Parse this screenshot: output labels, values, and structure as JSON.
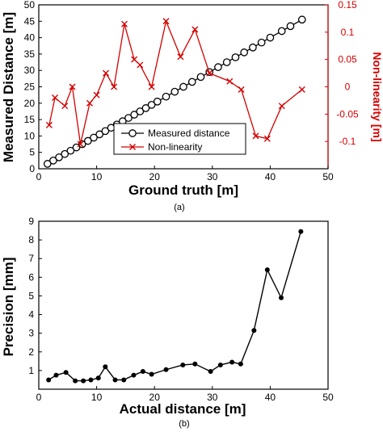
{
  "colors": {
    "measured": "#000000",
    "nonlinearity": "#d40000",
    "precision": "#000000"
  },
  "captions": {
    "a": "(a)",
    "b": "(b)"
  },
  "chart_data": [
    {
      "id": "a",
      "type": "line",
      "xlabel": "Ground truth [m]",
      "ylabel": "Measured Distance [m]",
      "y2label": "Non-linearity [m]",
      "xlim": [
        0,
        50
      ],
      "ylim": [
        0,
        50
      ],
      "y2lim": [
        -0.15,
        0.15
      ],
      "xticks": [
        0,
        10,
        20,
        30,
        40,
        50
      ],
      "yticks": [
        0,
        5,
        10,
        15,
        20,
        25,
        30,
        35,
        40,
        45,
        50
      ],
      "y2ticks": [
        -0.1,
        -0.05,
        0,
        0.05,
        0.1,
        0.15
      ],
      "y2ticklabels": [
        "-0.1",
        "-0.05",
        "0",
        "0.05",
        "0.1",
        "0.15"
      ],
      "grid": false,
      "legend_position": "lower-right",
      "series": [
        {
          "name": "Measured distance",
          "marker": "circle",
          "axis": "left",
          "x": [
            1.5,
            2.5,
            3.5,
            4.5,
            5.5,
            6.5,
            7.5,
            8.5,
            9.5,
            10.5,
            11.5,
            12.5,
            13.5,
            14.5,
            15.5,
            16.5,
            17.5,
            18.5,
            19.5,
            20.5,
            22,
            23.5,
            25,
            26.5,
            28,
            29.5,
            31,
            32.5,
            34,
            35.5,
            37,
            38.5,
            40,
            42,
            43.5,
            45.5
          ],
          "y": [
            1.5,
            2.5,
            3.5,
            4.5,
            5.5,
            6.5,
            7.5,
            8.5,
            9.5,
            10.5,
            11.5,
            12.5,
            13.5,
            14.5,
            15.5,
            16.5,
            17.5,
            18.5,
            19.5,
            20.5,
            22,
            23.5,
            25,
            26.5,
            28,
            29.5,
            31,
            32.5,
            34,
            35.5,
            37,
            38.5,
            40,
            42,
            43.5,
            45.5
          ]
        },
        {
          "name": "Non-linearity",
          "marker": "x",
          "axis": "right",
          "x": [
            1.8,
            2.8,
            4.5,
            5.8,
            7.2,
            8.8,
            10.0,
            11.6,
            13.0,
            14.8,
            16.5,
            17.5,
            19.5,
            22.0,
            24.5,
            27.0,
            29.5,
            33.0,
            35.0,
            37.5,
            39.5,
            42.0,
            45.5
          ],
          "y": [
            -0.07,
            -0.02,
            -0.035,
            0.0,
            -0.105,
            -0.03,
            -0.015,
            0.025,
            0.0,
            0.115,
            0.05,
            0.04,
            0.0,
            0.12,
            0.055,
            0.105,
            0.025,
            0.01,
            -0.005,
            -0.09,
            -0.095,
            -0.035,
            -0.005
          ]
        }
      ]
    },
    {
      "id": "b",
      "type": "line",
      "xlabel": "Actual distance [m]",
      "ylabel": "Precision [mm]",
      "xlim": [
        0,
        50
      ],
      "ylim": [
        0,
        9
      ],
      "xticks": [
        0,
        10,
        20,
        30,
        40,
        50
      ],
      "yticks": [
        1,
        2,
        3,
        4,
        5,
        6,
        7,
        8,
        9
      ],
      "grid": false,
      "series": [
        {
          "marker": "dot",
          "x": [
            1.7,
            3,
            4.7,
            6.3,
            7.7,
            9,
            10.3,
            11.5,
            13.2,
            14.7,
            16.4,
            18.0,
            19.5,
            22.0,
            24.9,
            27.0,
            29.7,
            31.4,
            33.4,
            34.9,
            37.2,
            39.5,
            41.9,
            45.3
          ],
          "y": [
            0.5,
            0.75,
            0.9,
            0.45,
            0.45,
            0.5,
            0.6,
            1.2,
            0.5,
            0.5,
            0.75,
            0.95,
            0.8,
            1.05,
            1.3,
            1.35,
            0.95,
            1.3,
            1.45,
            1.35,
            3.15,
            6.4,
            4.9,
            8.45
          ]
        }
      ]
    }
  ]
}
